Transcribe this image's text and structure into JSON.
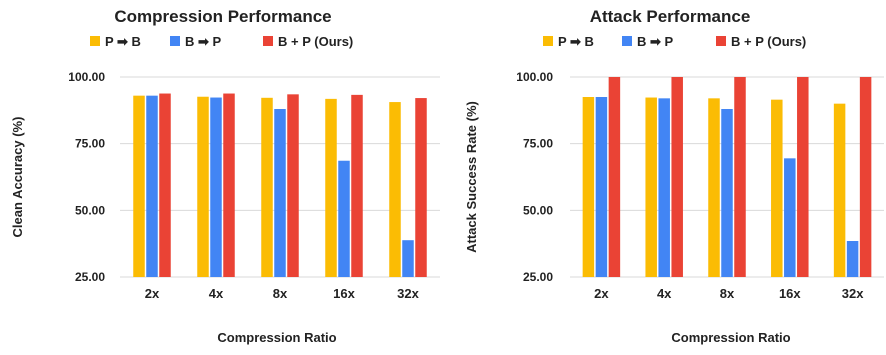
{
  "chart_data": [
    {
      "type": "bar",
      "title": "Compression Performance",
      "xlabel": "Compression Ratio",
      "ylabel": "Clean Accuracy (%)",
      "categories": [
        "2x",
        "4x",
        "8x",
        "16x",
        "32x"
      ],
      "yticks": [
        "25.00",
        "50.00",
        "75.00",
        "100.00"
      ],
      "ylim": [
        25,
        100
      ],
      "grid": true,
      "legend": "top",
      "series": [
        {
          "name": "P ➡ B",
          "color": "#fbbc04",
          "values": [
            93.0,
            92.6,
            92.2,
            91.8,
            90.6
          ]
        },
        {
          "name": "B ➡ P",
          "color": "#4285f4",
          "values": [
            93.0,
            92.3,
            88.0,
            68.6,
            38.8
          ]
        },
        {
          "name": "B + P (Ours)",
          "color": "#ea4335",
          "values": [
            93.8,
            93.8,
            93.5,
            93.3,
            92.1
          ]
        }
      ]
    },
    {
      "type": "bar",
      "title": "Attack Performance",
      "xlabel": "Compression Ratio",
      "ylabel": "Attack Success Rate (%)",
      "categories": [
        "2x",
        "4x",
        "8x",
        "16x",
        "32x"
      ],
      "yticks": [
        "25.00",
        "50.00",
        "75.00",
        "100.00"
      ],
      "ylim": [
        25,
        100
      ],
      "grid": true,
      "legend": "top",
      "series": [
        {
          "name": "P ➡ B",
          "color": "#fbbc04",
          "values": [
            92.5,
            92.3,
            92.0,
            91.5,
            90.0
          ]
        },
        {
          "name": "B ➡ P",
          "color": "#4285f4",
          "values": [
            92.5,
            92.0,
            88.0,
            69.5,
            38.5
          ]
        },
        {
          "name": "B + P (Ours)",
          "color": "#ea4335",
          "values": [
            100,
            100,
            100,
            100,
            100
          ]
        }
      ]
    }
  ]
}
